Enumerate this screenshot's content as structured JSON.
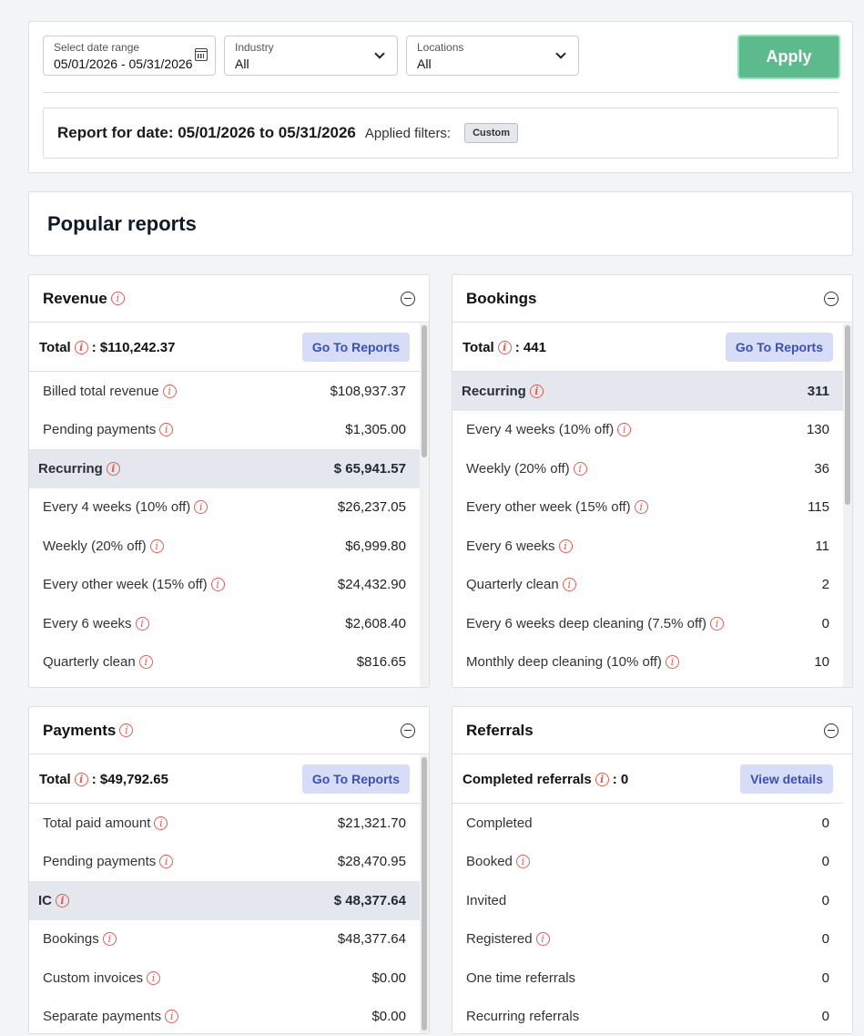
{
  "filters": {
    "date": {
      "label": "Select date range",
      "value": "05/01/2026 - 05/31/2026"
    },
    "industry": {
      "label": "Industry",
      "value": "All"
    },
    "locations": {
      "label": "Locations",
      "value": "All"
    },
    "apply_label": "Apply",
    "report_title": "Report for date: 05/01/2026 to 05/31/2026",
    "applied_label": "Applied filters:",
    "applied_badge": "Custom"
  },
  "popular_title": "Popular reports",
  "revenue": {
    "title": "Revenue",
    "total_label": "Total",
    "total_value": ": $110,242.37",
    "button": "Go To Reports",
    "rows": [
      {
        "name": "Billed total revenue",
        "value": "$108,937.37",
        "info": true
      },
      {
        "name": "Pending payments",
        "value": "$1,305.00",
        "info": true
      },
      {
        "name": "Recurring",
        "value": "$ 65,941.57",
        "info": true,
        "group": true
      },
      {
        "name": "Every 4 weeks (10% off)",
        "value": "$26,237.05",
        "info": true
      },
      {
        "name": "Weekly (20% off)",
        "value": "$6,999.80",
        "info": true
      },
      {
        "name": "Every other week (15% off)",
        "value": "$24,432.90",
        "info": true
      },
      {
        "name": "Every 6 weeks",
        "value": "$2,608.40",
        "info": true
      },
      {
        "name": "Quarterly clean",
        "value": "$816.65",
        "info": true
      }
    ]
  },
  "bookings": {
    "title": "Bookings",
    "total_label": "Total",
    "total_value": ": 441",
    "button": "Go To Reports",
    "rows": [
      {
        "name": "Recurring",
        "value": "311",
        "info": true,
        "group": true
      },
      {
        "name": "Every 4 weeks (10% off)",
        "value": "130",
        "info": true
      },
      {
        "name": "Weekly (20% off)",
        "value": "36",
        "info": true
      },
      {
        "name": "Every other week (15% off)",
        "value": "115",
        "info": true
      },
      {
        "name": "Every 6 weeks",
        "value": "11",
        "info": true
      },
      {
        "name": "Quarterly clean",
        "value": "2",
        "info": true
      },
      {
        "name": "Every 6 weeks deep cleaning (7.5% off)",
        "value": "0",
        "info": true
      },
      {
        "name": "Monthly deep cleaning (10% off)",
        "value": "10",
        "info": true
      }
    ]
  },
  "payments": {
    "title": "Payments",
    "total_label": "Total",
    "total_value": ": $49,792.65",
    "button": "Go To Reports",
    "rows": [
      {
        "name": "Total paid amount",
        "value": "$21,321.70",
        "info": true
      },
      {
        "name": "Pending payments",
        "value": "$28,470.95",
        "info": true
      },
      {
        "name": "IC",
        "value": "$ 48,377.64",
        "info": true,
        "group": true
      },
      {
        "name": "Bookings",
        "value": "$48,377.64",
        "info": true
      },
      {
        "name": "Custom invoices",
        "value": "$0.00",
        "info": true
      },
      {
        "name": "Separate payments",
        "value": "$0.00",
        "info": true
      }
    ]
  },
  "referrals": {
    "title": "Referrals",
    "total_label": "Completed referrals",
    "total_value": ": 0",
    "button": "View details",
    "rows": [
      {
        "name": "Completed",
        "value": "0",
        "info": false
      },
      {
        "name": "Booked",
        "value": "0",
        "info": true
      },
      {
        "name": "Invited",
        "value": "0",
        "info": false
      },
      {
        "name": "Registered",
        "value": "0",
        "info": true
      },
      {
        "name": "One time referrals",
        "value": "0",
        "info": false
      },
      {
        "name": "Recurring referrals",
        "value": "0",
        "info": false
      }
    ]
  }
}
